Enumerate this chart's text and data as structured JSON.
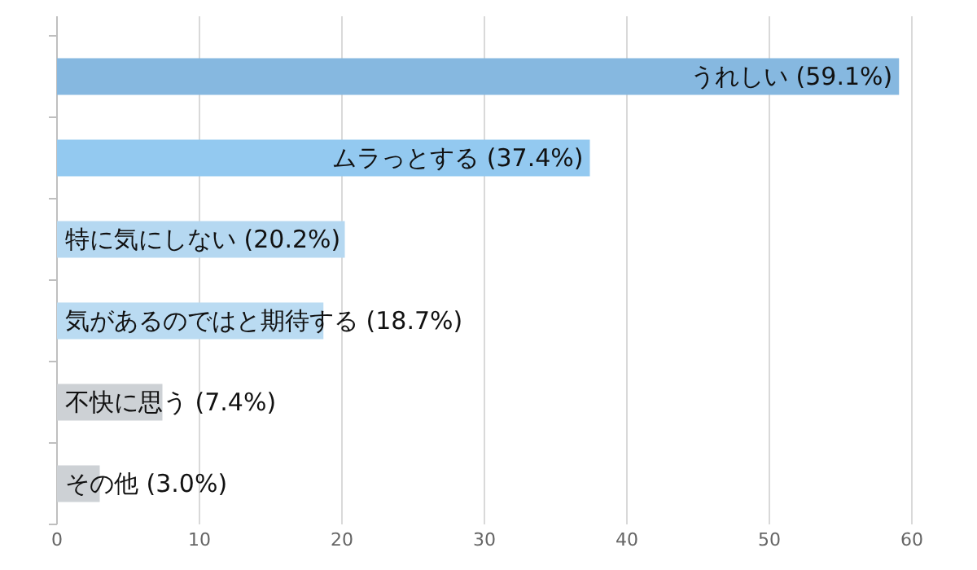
{
  "chart_data": {
    "type": "bar",
    "orientation": "horizontal",
    "categories": [
      "うれしい",
      "ムラっとする",
      "特に気にしない",
      "気があるのではと期待する",
      "不快に思う",
      "その他"
    ],
    "values": [
      59.1,
      37.4,
      20.2,
      18.7,
      7.4,
      3.0
    ],
    "value_labels": [
      "(59.1%)",
      "(37.4%)",
      "(20.2%)",
      "(18.7%)",
      "(7.4%)",
      "(3.0%)"
    ],
    "colors": [
      "#86b8e0",
      "#93c9f0",
      "#b5d8f1",
      "#badbf2",
      "#cdd1d5",
      "#cdd1d5"
    ],
    "xlim": [
      0,
      60
    ],
    "xticks": [
      0,
      10,
      20,
      30,
      40,
      50,
      60
    ],
    "grid": "x"
  }
}
